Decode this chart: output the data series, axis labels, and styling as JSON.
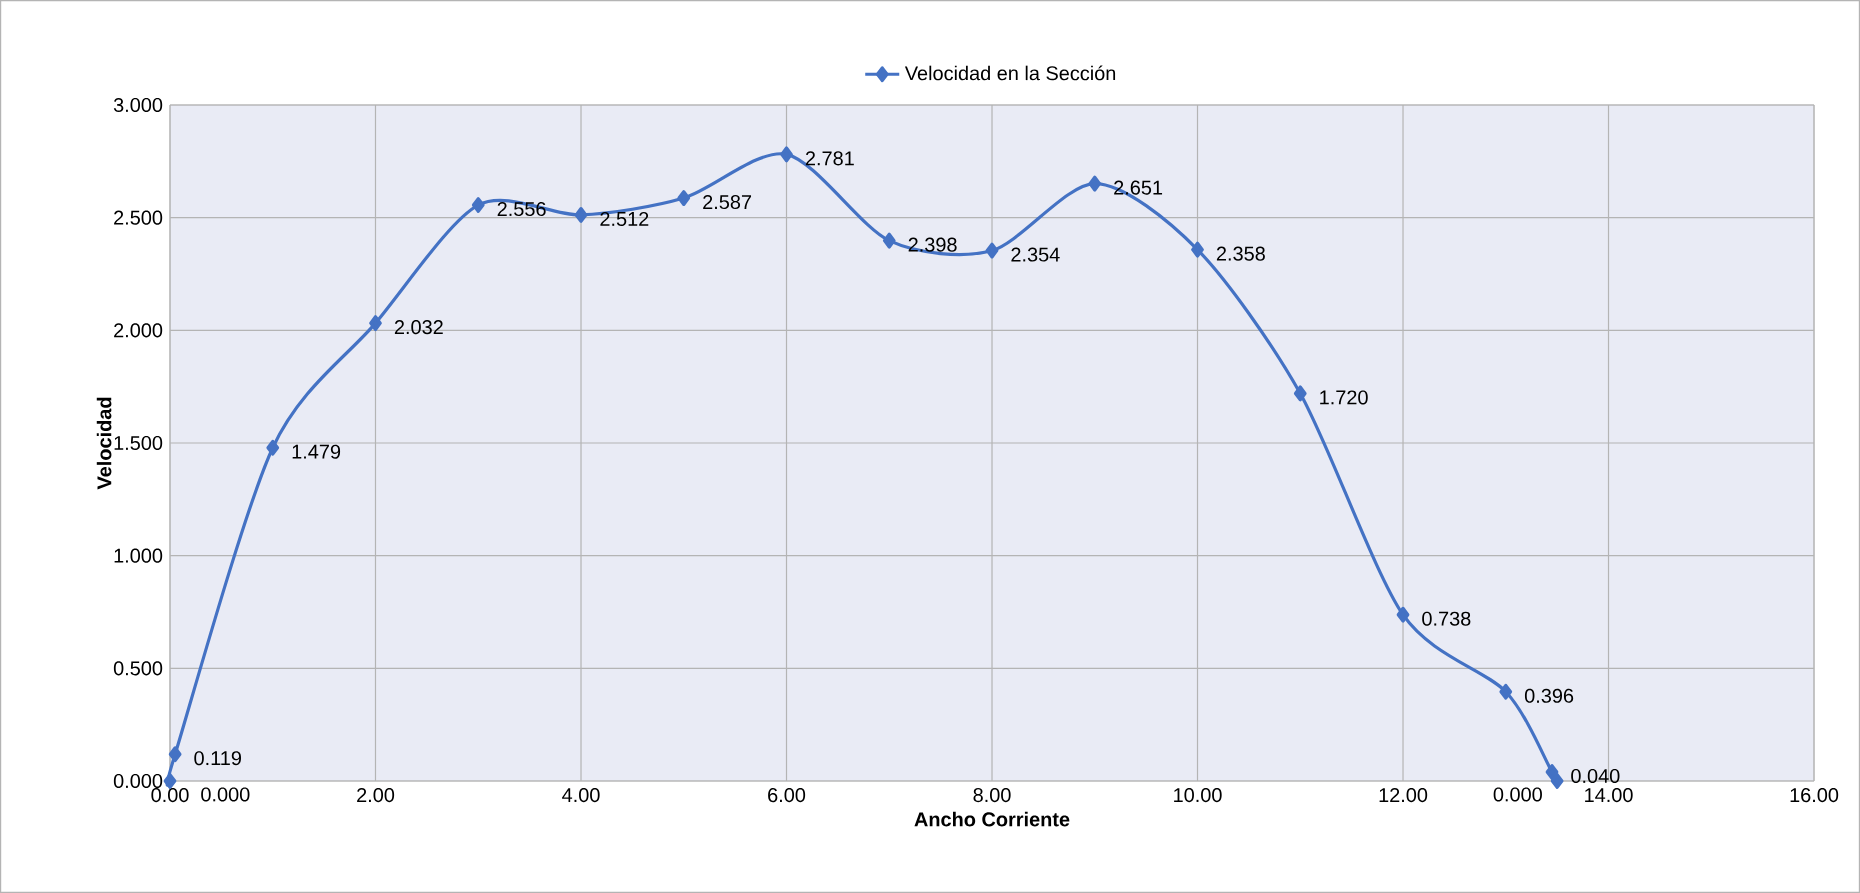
{
  "chart_data": {
    "type": "line",
    "xlabel": "Ancho Corriente",
    "ylabel": "Velocidad",
    "x": [
      0,
      0.05,
      1,
      2,
      3,
      4,
      5,
      6,
      7,
      8,
      9,
      10,
      11,
      12,
      13,
      13.45,
      13.5
    ],
    "series": [
      {
        "name": "Velocidad en la Sección",
        "color": "#4472c4",
        "values": [
          0,
          0.119,
          1.479,
          2.032,
          2.556,
          2.512,
          2.587,
          2.781,
          2.398,
          2.354,
          2.651,
          2.358,
          1.72,
          0.738,
          0.396,
          0.04,
          0
        ],
        "value_labels": [
          "0.000",
          "0.119",
          "1.479",
          "2.032",
          "2.556",
          "2.512",
          "2.587",
          "2.781",
          "2.398",
          "2.354",
          "2.651",
          "2.358",
          "1.720",
          "0.738",
          "0.396",
          "0.040",
          "0.000"
        ]
      }
    ],
    "xlim": [
      0,
      16
    ],
    "ylim": [
      0,
      3
    ],
    "xticks": [
      {
        "value": 0,
        "label": "0.00"
      },
      {
        "value": 2,
        "label": "2.00"
      },
      {
        "value": 4,
        "label": "4.00"
      },
      {
        "value": 6,
        "label": "6.00"
      },
      {
        "value": 8,
        "label": "8.00"
      },
      {
        "value": 10,
        "label": "10.00"
      },
      {
        "value": 12,
        "label": "12.00"
      },
      {
        "value": 14,
        "label": "14.00"
      },
      {
        "value": 16,
        "label": "16.00"
      }
    ],
    "yticks": [
      {
        "value": 0,
        "label": "0.000"
      },
      {
        "value": 0.5,
        "label": "0.500"
      },
      {
        "value": 1,
        "label": "1.000"
      },
      {
        "value": 1.5,
        "label": "1.500"
      },
      {
        "value": 2,
        "label": "2.000"
      },
      {
        "value": 2.5,
        "label": "2.500"
      },
      {
        "value": 3,
        "label": "3.000"
      }
    ],
    "grid": true,
    "legend": "top",
    "marker": "diamond",
    "line_style": "solid"
  }
}
